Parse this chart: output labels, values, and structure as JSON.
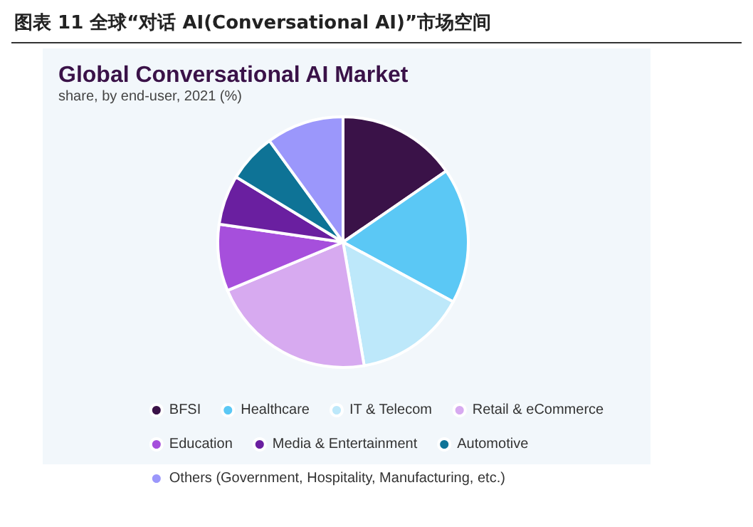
{
  "chart_data": {
    "type": "pie",
    "title": "Global Conversational AI Market",
    "subtitle": "share, by end-user, 2021 (%)",
    "annotations": [
      "图表 11 全球“对话 AI(Conversational AI)”市场空间"
    ],
    "categories": [
      "BFSI",
      "Healthcare",
      "IT & Telecom",
      "Retail & eCommerce",
      "Education",
      "Media & Entertainment",
      "Automotive",
      "Others (Government, Hospitality, Manufacturing, etc.)"
    ],
    "values": [
      15.4,
      17.5,
      14.4,
      21.4,
      8.6,
      6.4,
      6.3,
      10.0
    ],
    "colors": [
      "#3a1248",
      "#5bc8f5",
      "#bde8fa",
      "#d7aaf0",
      "#a64fdc",
      "#6a1fa0",
      "#0e7396",
      "#9b97fb"
    ],
    "legend": "bottom"
  }
}
